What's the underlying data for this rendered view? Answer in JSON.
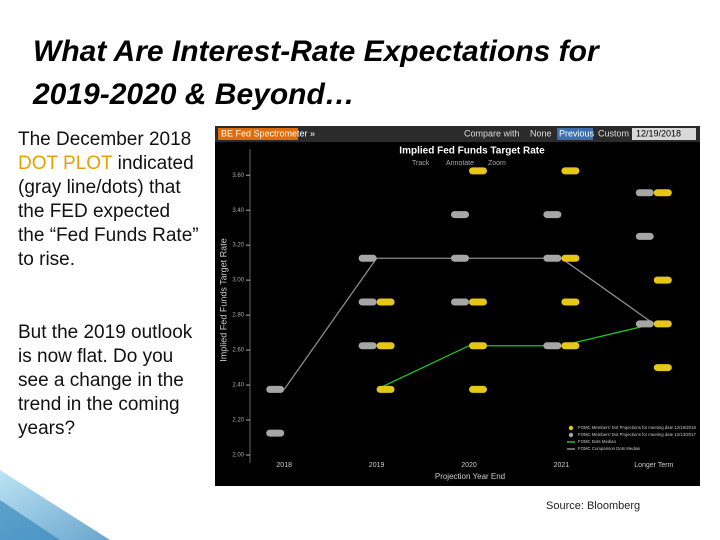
{
  "slide": {
    "title_lines": [
      "What Are Interest-Rate Expectations for",
      "2019-2020 & Beyond…"
    ],
    "paragraph1": [
      "The December 2018 ",
      "DOT PLOT",
      " indicated (gray line/dots) that the FED expected the “Fed Funds Rate” to rise."
    ],
    "paragraph2": "But the 2019 outlook is now flat. Do you see a change in the trend in the coming years?",
    "source": "Source: Bloomberg"
  },
  "chart_data": {
    "type": "dot",
    "toolbar": {
      "app": "BE Fed Spectrometer »",
      "compare_label": "Compare with",
      "options": [
        "None",
        "Previous",
        "Custom"
      ],
      "date": "12/19/2018",
      "tools": [
        "Track",
        "Annotate",
        "Zoom"
      ]
    },
    "title": "Implied Fed Funds Target Rate",
    "y_label": "Implied Fed Funds Target Rate",
    "x_label": "Projection Year End",
    "categories": [
      "2018",
      "2019",
      "2020",
      "2021",
      "Longer Term"
    ],
    "ylim": [
      2.0,
      3.75
    ],
    "yticks": [
      {
        "value": 2.0,
        "label": "2.00"
      },
      {
        "value": 2.2,
        "label": "2.20"
      },
      {
        "value": 2.4,
        "label": "2.40"
      },
      {
        "value": 2.6,
        "label": "2.60"
      },
      {
        "value": 2.8,
        "label": "2.80"
      },
      {
        "value": 3.0,
        "label": "3.00"
      },
      {
        "value": 3.2,
        "label": "3.20"
      },
      {
        "value": 3.4,
        "label": "3.40"
      },
      {
        "value": 3.6,
        "label": "3.60"
      }
    ],
    "dot_series": [
      {
        "name": "FOMC Members' Dot Projections for meeting date 12/19/2018",
        "color": "#e6c619",
        "x": [
          "2019",
          "2019",
          "2019",
          "2020",
          "2020",
          "2020",
          "2020",
          "2021",
          "2021",
          "2021",
          "2021",
          "Longer Term",
          "Longer Term",
          "Longer Term",
          "Longer Term"
        ],
        "values": [
          2.375,
          2.625,
          2.875,
          2.375,
          2.625,
          2.875,
          3.625,
          2.625,
          2.875,
          3.125,
          3.625,
          2.5,
          2.75,
          3.0,
          3.5
        ]
      },
      {
        "name": "FOMC Members' Dot Projections for meeting date 12/13/2017",
        "color": "#a6a6a6",
        "x": [
          "2018",
          "2018",
          "2019",
          "2019",
          "2019",
          "2020",
          "2020",
          "2020",
          "2021",
          "2021",
          "2021",
          "Longer Term",
          "Longer Term",
          "Longer Term"
        ],
        "values": [
          2.375,
          2.125,
          2.625,
          2.875,
          3.125,
          2.875,
          3.125,
          3.375,
          2.625,
          3.125,
          3.375,
          2.75,
          3.25,
          3.5
        ]
      }
    ],
    "line_series": [
      {
        "name": "FOMC Dots Median",
        "color": "#22c422",
        "values": [
          null,
          2.375,
          2.625,
          2.625,
          2.75
        ]
      },
      {
        "name": "FOMC Comparison Dots Median",
        "color": "#8c8c8c",
        "values": [
          2.375,
          3.125,
          3.125,
          3.125,
          2.75
        ]
      }
    ]
  }
}
